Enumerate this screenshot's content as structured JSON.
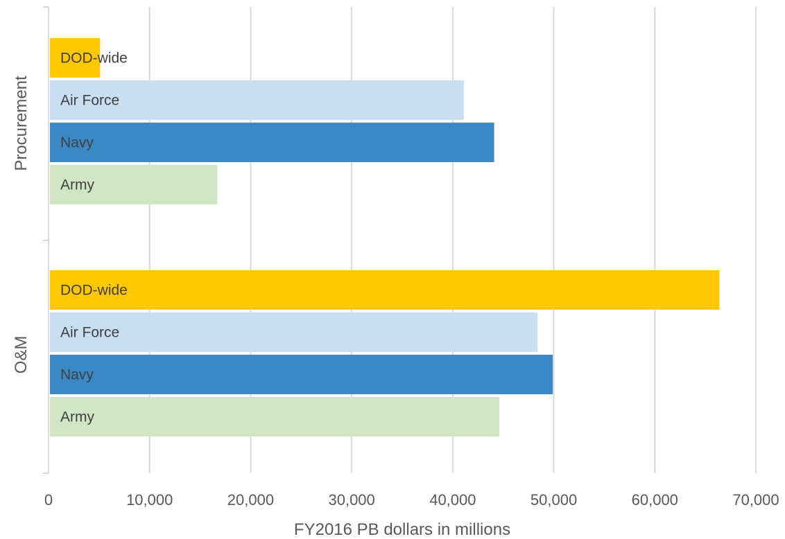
{
  "chart_data": {
    "type": "bar",
    "orientation": "horizontal",
    "title": "",
    "xlabel": "FY2016 PB dollars in millions",
    "ylabel": "",
    "xlim": [
      0,
      70000
    ],
    "x_ticks": [
      0,
      10000,
      20000,
      30000,
      40000,
      50000,
      60000,
      70000
    ],
    "x_tick_labels": [
      "0",
      "10,000",
      "20,000",
      "30,000",
      "40,000",
      "50,000",
      "60,000",
      "70,000"
    ],
    "grid": true,
    "legend": "none",
    "groups": [
      {
        "name": "Procurement",
        "bars": [
          {
            "label": "DOD-wide",
            "value": 5100,
            "color": "#ffc800"
          },
          {
            "label": "Air Force",
            "value": 41100,
            "color": "#c9dff1"
          },
          {
            "label": "Navy",
            "value": 44100,
            "color": "#3a88c4"
          },
          {
            "label": "Army",
            "value": 16700,
            "color": "#d1e6c4"
          }
        ]
      },
      {
        "name": "O&M",
        "bars": [
          {
            "label": "DOD-wide",
            "value": 66400,
            "color": "#ffc800"
          },
          {
            "label": "Air Force",
            "value": 48400,
            "color": "#c9dff1"
          },
          {
            "label": "Navy",
            "value": 49900,
            "color": "#3a88c4"
          },
          {
            "label": "Army",
            "value": 44600,
            "color": "#d1e6c4"
          }
        ]
      }
    ]
  }
}
